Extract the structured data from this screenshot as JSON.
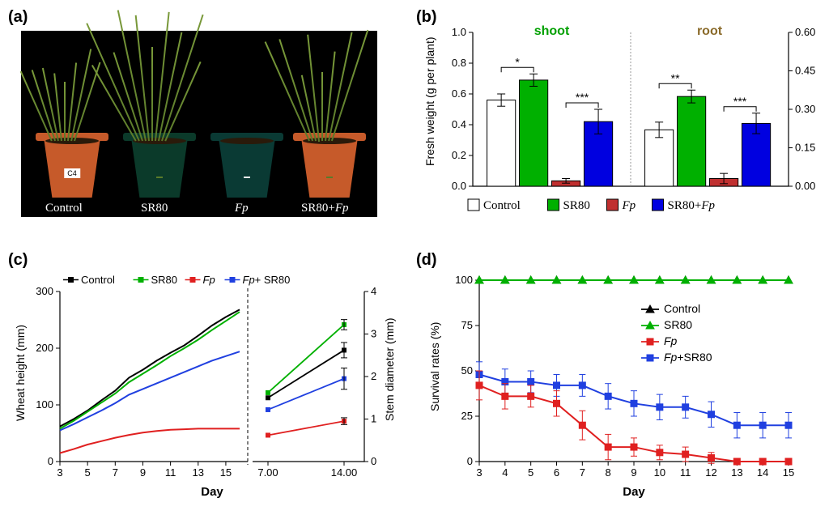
{
  "labels": {
    "a": "(a)",
    "b": "(b)",
    "c": "(c)",
    "d": "(d)"
  },
  "panel_a": {
    "pots": [
      {
        "x": 18,
        "body_color": "#c65a2a",
        "rim_color": "#c65a2a",
        "label_bg": "#ffffff",
        "label_text": "C4",
        "grass_n": 8,
        "grass_h": 120
      },
      {
        "x": 126,
        "body_color": "#0b3a2a",
        "rim_color": "#0b3a2a",
        "label_bg": "#5a7a2a",
        "label_text": "",
        "grass_n": 10,
        "grass_h": 150
      },
      {
        "x": 234,
        "body_color": "#0a3a34",
        "rim_color": "#0a3a34",
        "label_bg": "#eeeeee",
        "label_text": "",
        "grass_n": 0,
        "grass_h": 0
      },
      {
        "x": 336,
        "body_color": "#c65a2a",
        "rim_color": "#c65a2a",
        "label_bg": "#5a7a2a",
        "label_text": "",
        "grass_n": 8,
        "grass_h": 140
      }
    ],
    "captions": [
      {
        "text": "Control",
        "x": 30,
        "italic": false
      },
      {
        "text": "SR80",
        "x": 148,
        "italic": false
      },
      {
        "text": "Fp",
        "x": 264,
        "italic": true
      },
      {
        "text": "SR80+Fp",
        "x": 346,
        "italic": false,
        "mixed": true
      }
    ]
  },
  "panel_b": {
    "type": "bar",
    "ylabel": "Fresh weight (g per plant)",
    "group_labels": {
      "shoot": "shoot",
      "root": "root"
    },
    "group_colors": {
      "shoot": "#00a000",
      "root": "#8a6a2a"
    },
    "y_left": {
      "min": 0,
      "max": 1.0,
      "ticks": [
        0.0,
        0.2,
        0.4,
        0.6,
        0.8,
        1.0
      ]
    },
    "y_right": {
      "min": 0,
      "max": 0.6,
      "ticks": [
        0.0,
        0.15,
        0.3,
        0.45,
        0.6
      ]
    },
    "series": [
      {
        "key": "Control",
        "color": "#ffffff"
      },
      {
        "key": "SR80",
        "color": "#00b000"
      },
      {
        "key": "Fp",
        "color": "#c03030",
        "italic": true
      },
      {
        "key": "SR80+Fp",
        "color": "#0000e0",
        "mixed": true
      }
    ],
    "shoot": {
      "values": [
        0.56,
        0.69,
        0.035,
        0.42
      ],
      "err": [
        0.04,
        0.04,
        0.015,
        0.08
      ]
    },
    "root": {
      "values": [
        0.22,
        0.35,
        0.03,
        0.245
      ],
      "err": [
        0.03,
        0.025,
        0.02,
        0.04
      ]
    },
    "sig_shoot": [
      {
        "i1": 0,
        "i2": 1,
        "text": "*"
      },
      {
        "i1": 2,
        "i2": 3,
        "text": "***"
      }
    ],
    "sig_root": [
      {
        "i1": 0,
        "i2": 1,
        "text": "**"
      },
      {
        "i1": 2,
        "i2": 3,
        "text": "***"
      }
    ],
    "background_color": "#ffffff"
  },
  "panel_c": {
    "type": "line",
    "xlabel": "Day",
    "ylabel_left": "Wheat height (mm)",
    "ylabel_right": "Stem diameter (mm)",
    "x_left": {
      "ticks": [
        3,
        5,
        7,
        9,
        11,
        13,
        15
      ]
    },
    "y_left": {
      "min": 0,
      "max": 300,
      "ticks": [
        0,
        100,
        200,
        300
      ]
    },
    "x_right": {
      "ticks": [
        7.0,
        14.0
      ]
    },
    "y_right": {
      "min": 0,
      "max": 4,
      "ticks": [
        0,
        1,
        2,
        3,
        4
      ]
    },
    "colors": {
      "Control": "#000000",
      "SR80": "#00b000",
      "Fp": "#e02020",
      "FpSR80": "#2040e0"
    },
    "legend": [
      {
        "text": "Control",
        "color": "#000000"
      },
      {
        "text": "SR80",
        "color": "#00b000"
      },
      {
        "text": "Fp",
        "color": "#e02020",
        "italic": true
      },
      {
        "text": "Fp+ SR80",
        "color": "#2040e0",
        "mixed": true,
        "sep": " "
      }
    ],
    "height_x": [
      3,
      4,
      5,
      6,
      7,
      8,
      9,
      10,
      11,
      12,
      13,
      14,
      15,
      16
    ],
    "height": {
      "Control": [
        62,
        75,
        90,
        108,
        125,
        148,
        162,
        178,
        192,
        205,
        222,
        240,
        255,
        268
      ],
      "SR80": [
        58,
        72,
        88,
        104,
        120,
        140,
        155,
        170,
        186,
        200,
        215,
        232,
        248,
        264
      ],
      "FpSR80": [
        55,
        66,
        78,
        90,
        103,
        118,
        128,
        138,
        148,
        158,
        168,
        178,
        186,
        194
      ],
      "Fp": [
        15,
        22,
        30,
        36,
        42,
        47,
        51,
        54,
        56,
        57,
        58,
        58,
        58,
        58
      ]
    },
    "diameter_x": [
      7,
      14
    ],
    "diameter": {
      "Control": {
        "y": [
          1.5,
          2.62
        ],
        "err": [
          0.0,
          0.18
        ]
      },
      "SR80": {
        "y": [
          1.62,
          3.22
        ],
        "err": [
          0.0,
          0.12
        ]
      },
      "FpSR80": {
        "y": [
          1.22,
          1.95
        ],
        "err": [
          0.0,
          0.25
        ]
      },
      "Fp": {
        "y": [
          0.62,
          0.95
        ],
        "err": [
          0.0,
          0.08
        ]
      }
    }
  },
  "panel_d": {
    "type": "line",
    "xlabel": "Day",
    "ylabel": "Survival rates (%)",
    "x": {
      "ticks": [
        3,
        4,
        5,
        6,
        7,
        8,
        9,
        10,
        11,
        12,
        13,
        14,
        15
      ]
    },
    "y": {
      "min": 0,
      "max": 100,
      "ticks": [
        0,
        25,
        50,
        75,
        100
      ]
    },
    "colors": {
      "Control": "#000000",
      "SR80": "#00b000",
      "Fp": "#e02020",
      "FpSR80": "#2040e0"
    },
    "markers": {
      "Control": "triangle",
      "SR80": "triangle",
      "Fp": "square",
      "FpSR80": "square"
    },
    "legend": [
      {
        "text": "Control",
        "color": "#000000",
        "marker": "triangle"
      },
      {
        "text": "SR80",
        "color": "#00b000",
        "marker": "triangle"
      },
      {
        "text": "Fp",
        "color": "#e02020",
        "marker": "square",
        "italic": true
      },
      {
        "text": "Fp+SR80",
        "color": "#2040e0",
        "marker": "square",
        "mixed": true
      }
    ],
    "data": {
      "Control": {
        "y": [
          100,
          100,
          100,
          100,
          100,
          100,
          100,
          100,
          100,
          100,
          100,
          100,
          100
        ],
        "err": [
          0,
          0,
          0,
          0,
          0,
          0,
          0,
          0,
          0,
          0,
          0,
          0,
          0
        ]
      },
      "SR80": {
        "y": [
          100,
          100,
          100,
          100,
          100,
          100,
          100,
          100,
          100,
          100,
          100,
          100,
          100
        ],
        "err": [
          0,
          0,
          0,
          0,
          0,
          0,
          0,
          0,
          0,
          0,
          0,
          0,
          0
        ]
      },
      "Fp": {
        "y": [
          42,
          36,
          36,
          32,
          20,
          8,
          8,
          5,
          4,
          2,
          0,
          0,
          0
        ],
        "err": [
          8,
          7,
          6,
          7,
          8,
          7,
          5,
          4,
          4,
          3,
          0,
          0,
          0
        ]
      },
      "FpSR80": {
        "y": [
          48,
          44,
          44,
          42,
          42,
          36,
          32,
          30,
          30,
          26,
          20,
          20,
          20
        ],
        "err": [
          7,
          7,
          6,
          6,
          6,
          7,
          7,
          7,
          6,
          7,
          7,
          7,
          7
        ]
      }
    }
  }
}
